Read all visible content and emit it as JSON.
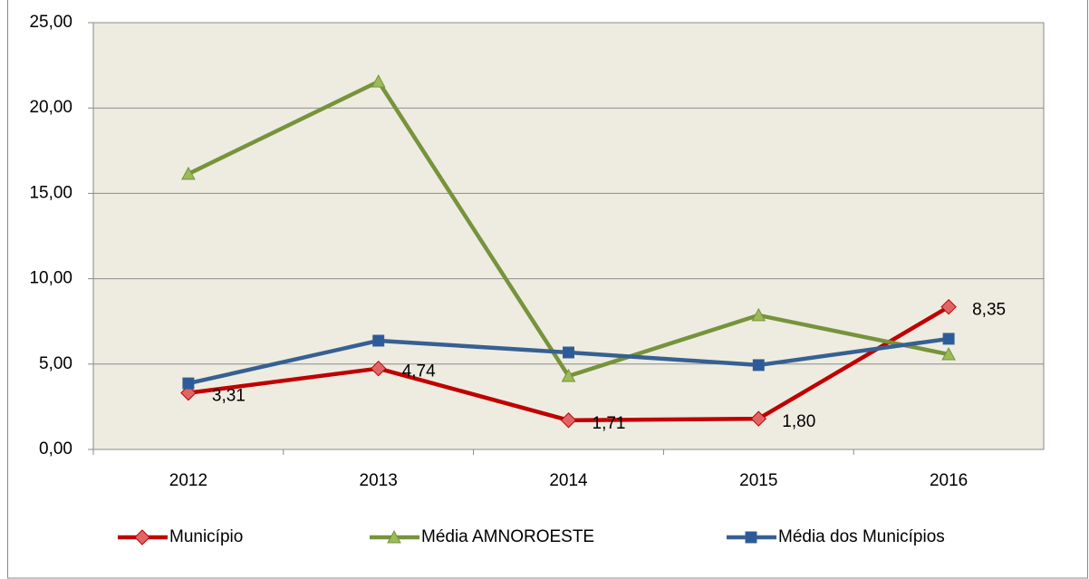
{
  "chart_data": {
    "type": "line",
    "categories": [
      "2012",
      "2013",
      "2014",
      "2015",
      "2016"
    ],
    "series": [
      {
        "name": "Município",
        "color": "#c00000",
        "marker": "diamond",
        "marker_fill": "#e06666",
        "values": [
          3.31,
          4.74,
          1.71,
          1.8,
          8.35
        ],
        "value_labels": [
          "3,31",
          "4,74",
          "1,71",
          "1,80",
          "8,35"
        ]
      },
      {
        "name": "Média AMNOROESTE",
        "color": "#77933c",
        "marker": "triangle",
        "marker_fill": "#9bbb59",
        "values": [
          16.14,
          21.55,
          4.3,
          7.86,
          5.57
        ]
      },
      {
        "name": "Média dos Municípios",
        "color": "#376092",
        "marker": "square",
        "marker_fill": "#2c5a9a",
        "values": [
          3.87,
          6.37,
          5.68,
          4.94,
          6.48
        ]
      }
    ],
    "ylim": [
      0,
      25
    ],
    "yticks": [
      {
        "value": 0,
        "label": "0,00"
      },
      {
        "value": 5,
        "label": "5,00"
      },
      {
        "value": 10,
        "label": "10,00"
      },
      {
        "value": 15,
        "label": "15,00"
      },
      {
        "value": 20,
        "label": "20,00"
      },
      {
        "value": 25,
        "label": "25,00"
      }
    ],
    "grid": true,
    "legend": "bottom",
    "background": "#eeece1"
  }
}
